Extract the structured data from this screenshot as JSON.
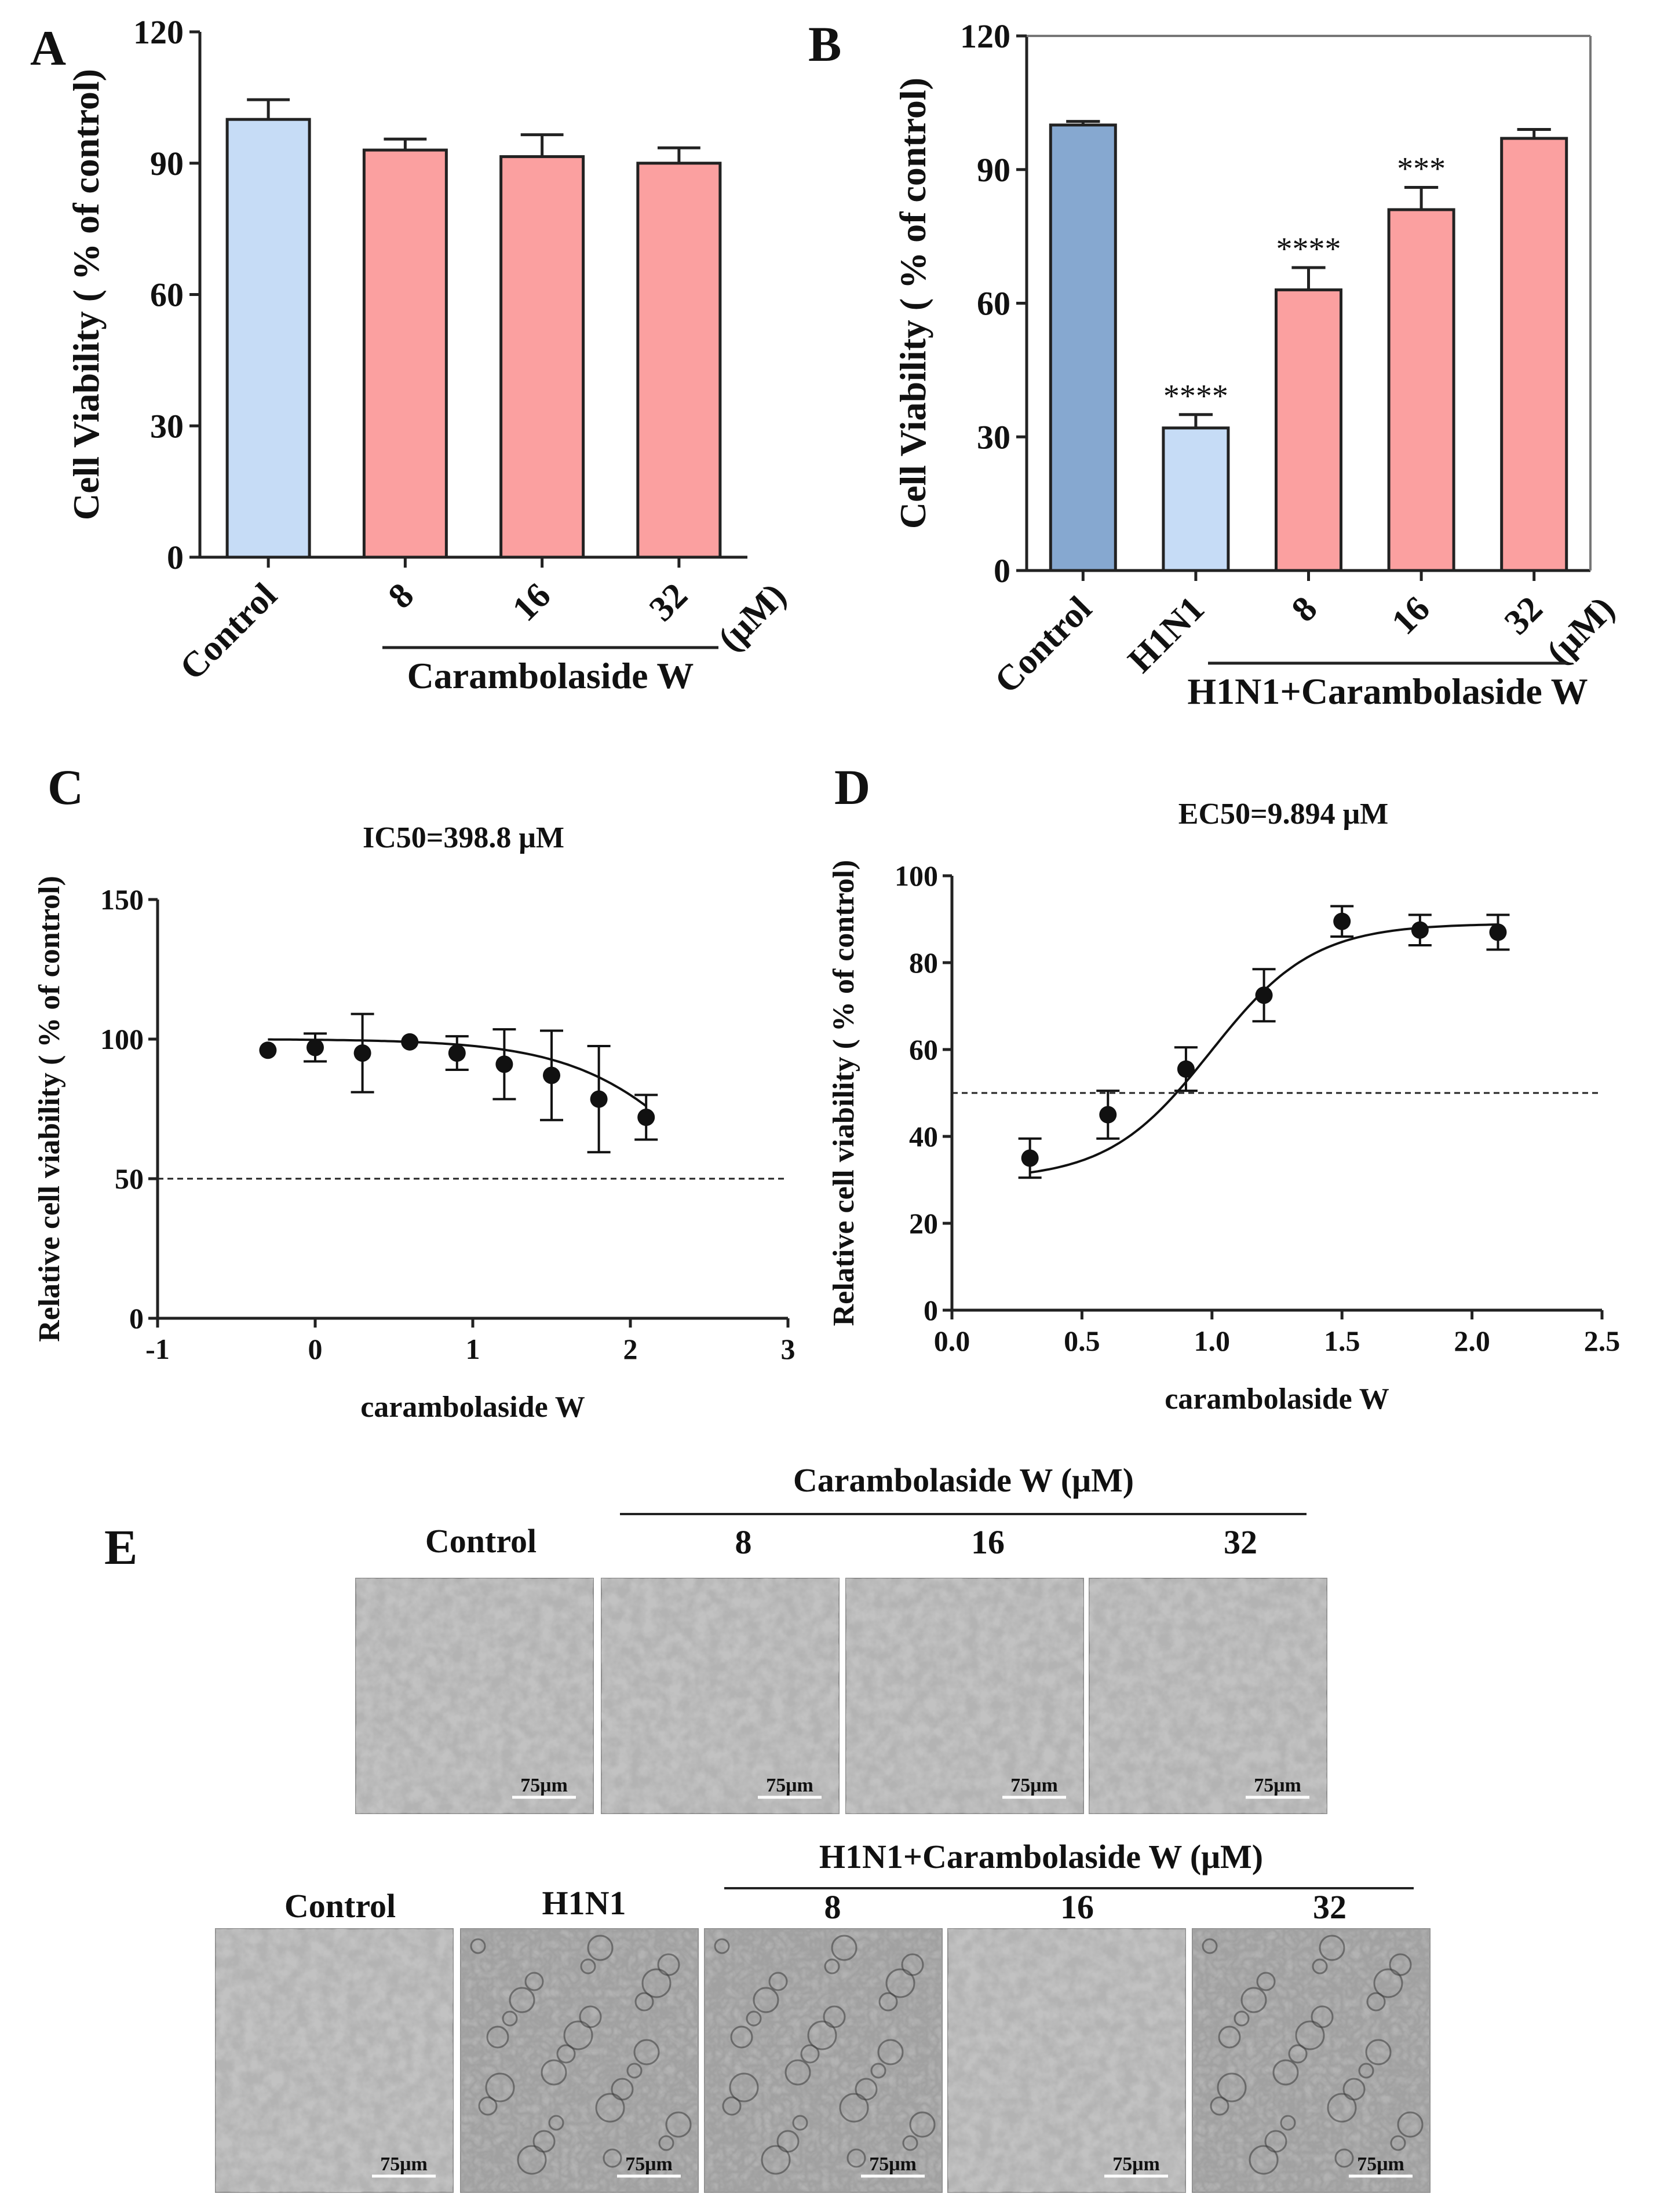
{
  "panels": {
    "A": {
      "letter": "A",
      "chart_data": {
        "type": "bar",
        "categories": [
          "Control",
          "8",
          "16",
          "32"
        ],
        "values": [
          100,
          93,
          91.5,
          90
        ],
        "errors": [
          4.5,
          2.5,
          5,
          3.5
        ],
        "colors": [
          "#c6dcf6",
          "#fba0a0",
          "#fba0a0",
          "#fba0a0"
        ],
        "ylabel": "Cell Viability ( % of control)",
        "ylim": [
          0,
          120
        ],
        "yticks": [
          0,
          30,
          60,
          90,
          120
        ],
        "group_label": "Carambolaside W",
        "unit": "(μM)",
        "significance": [
          "",
          "",
          "",
          ""
        ]
      }
    },
    "B": {
      "letter": "B",
      "chart_data": {
        "type": "bar",
        "categories": [
          "Control",
          "H1N1",
          "8",
          "16",
          "32"
        ],
        "values": [
          100,
          32,
          63,
          81,
          97
        ],
        "errors": [
          0.8,
          3,
          5,
          5,
          2
        ],
        "colors": [
          "#86a8d0",
          "#c6dcf6",
          "#fba0a0",
          "#fba0a0",
          "#fba0a0"
        ],
        "ylabel": "Cell Viability ( % of control)",
        "ylim": [
          0,
          120
        ],
        "yticks": [
          0,
          30,
          60,
          90,
          120
        ],
        "group_label": "H1N1+Carambolaside W",
        "unit": "(μM)",
        "significance": [
          "",
          "****",
          "****",
          "***",
          ""
        ]
      }
    },
    "C": {
      "letter": "C",
      "chart_data": {
        "type": "scatter",
        "title": "IC50=398.8 μM",
        "xlabel": "carambolaside W",
        "ylabel": "Relative cell viability ( % of control)",
        "xlim": [
          -1,
          3
        ],
        "ylim": [
          0,
          150
        ],
        "xticks": [
          -1,
          0,
          1,
          2,
          3
        ],
        "yticks": [
          0,
          50,
          100,
          150
        ],
        "x": [
          -0.3,
          0,
          0.3,
          0.6,
          0.9,
          1.2,
          1.5,
          1.8,
          2.1
        ],
        "y": [
          96,
          97,
          95,
          99,
          95,
          91,
          87,
          78.5,
          72
        ],
        "err": [
          0,
          5,
          14,
          0,
          6,
          12.5,
          16,
          19,
          8
        ],
        "fit": {
          "top": 100,
          "bottom": 0,
          "ic50": 398.8,
          "hill": -1
        },
        "reference_line": 50
      }
    },
    "D": {
      "letter": "D",
      "chart_data": {
        "type": "scatter",
        "title": "EC50=9.894 μM",
        "xlabel": "carambolaside W",
        "ylabel": "Relative cell viability ( % of control)",
        "xlim": [
          0,
          2.5
        ],
        "ylim": [
          0,
          100
        ],
        "xticks": [
          "0.0",
          "0.5",
          "1.0",
          "1.5",
          "2.0",
          "2.5"
        ],
        "yticks": [
          0,
          20,
          40,
          60,
          80,
          100
        ],
        "x": [
          0.3,
          0.6,
          0.9,
          1.2,
          1.5,
          1.8,
          2.1
        ],
        "y": [
          35,
          45,
          55.5,
          72.5,
          89.5,
          87.5,
          87
        ],
        "err": [
          4.5,
          5.5,
          5,
          6,
          3.5,
          3.5,
          4
        ],
        "fit": {
          "bottom": 30,
          "top": 89,
          "logec50": 0.995,
          "hill": 2.2
        },
        "reference_line": 50
      }
    }
  },
  "panelE": {
    "letter": "E",
    "row1": {
      "header": "Carambolaside W (μM)",
      "labels": [
        "Control",
        "8",
        "16",
        "32"
      ],
      "scale": [
        "75μm",
        "75μm",
        "75μm",
        "75μm"
      ]
    },
    "row2": {
      "header": "H1N1+Carambolaside W (μM)",
      "labels": [
        "Control",
        "H1N1",
        "8",
        "16",
        "32"
      ],
      "scale": [
        "75μm",
        "75μm",
        "75μm",
        "75μm",
        "75μm"
      ]
    }
  }
}
